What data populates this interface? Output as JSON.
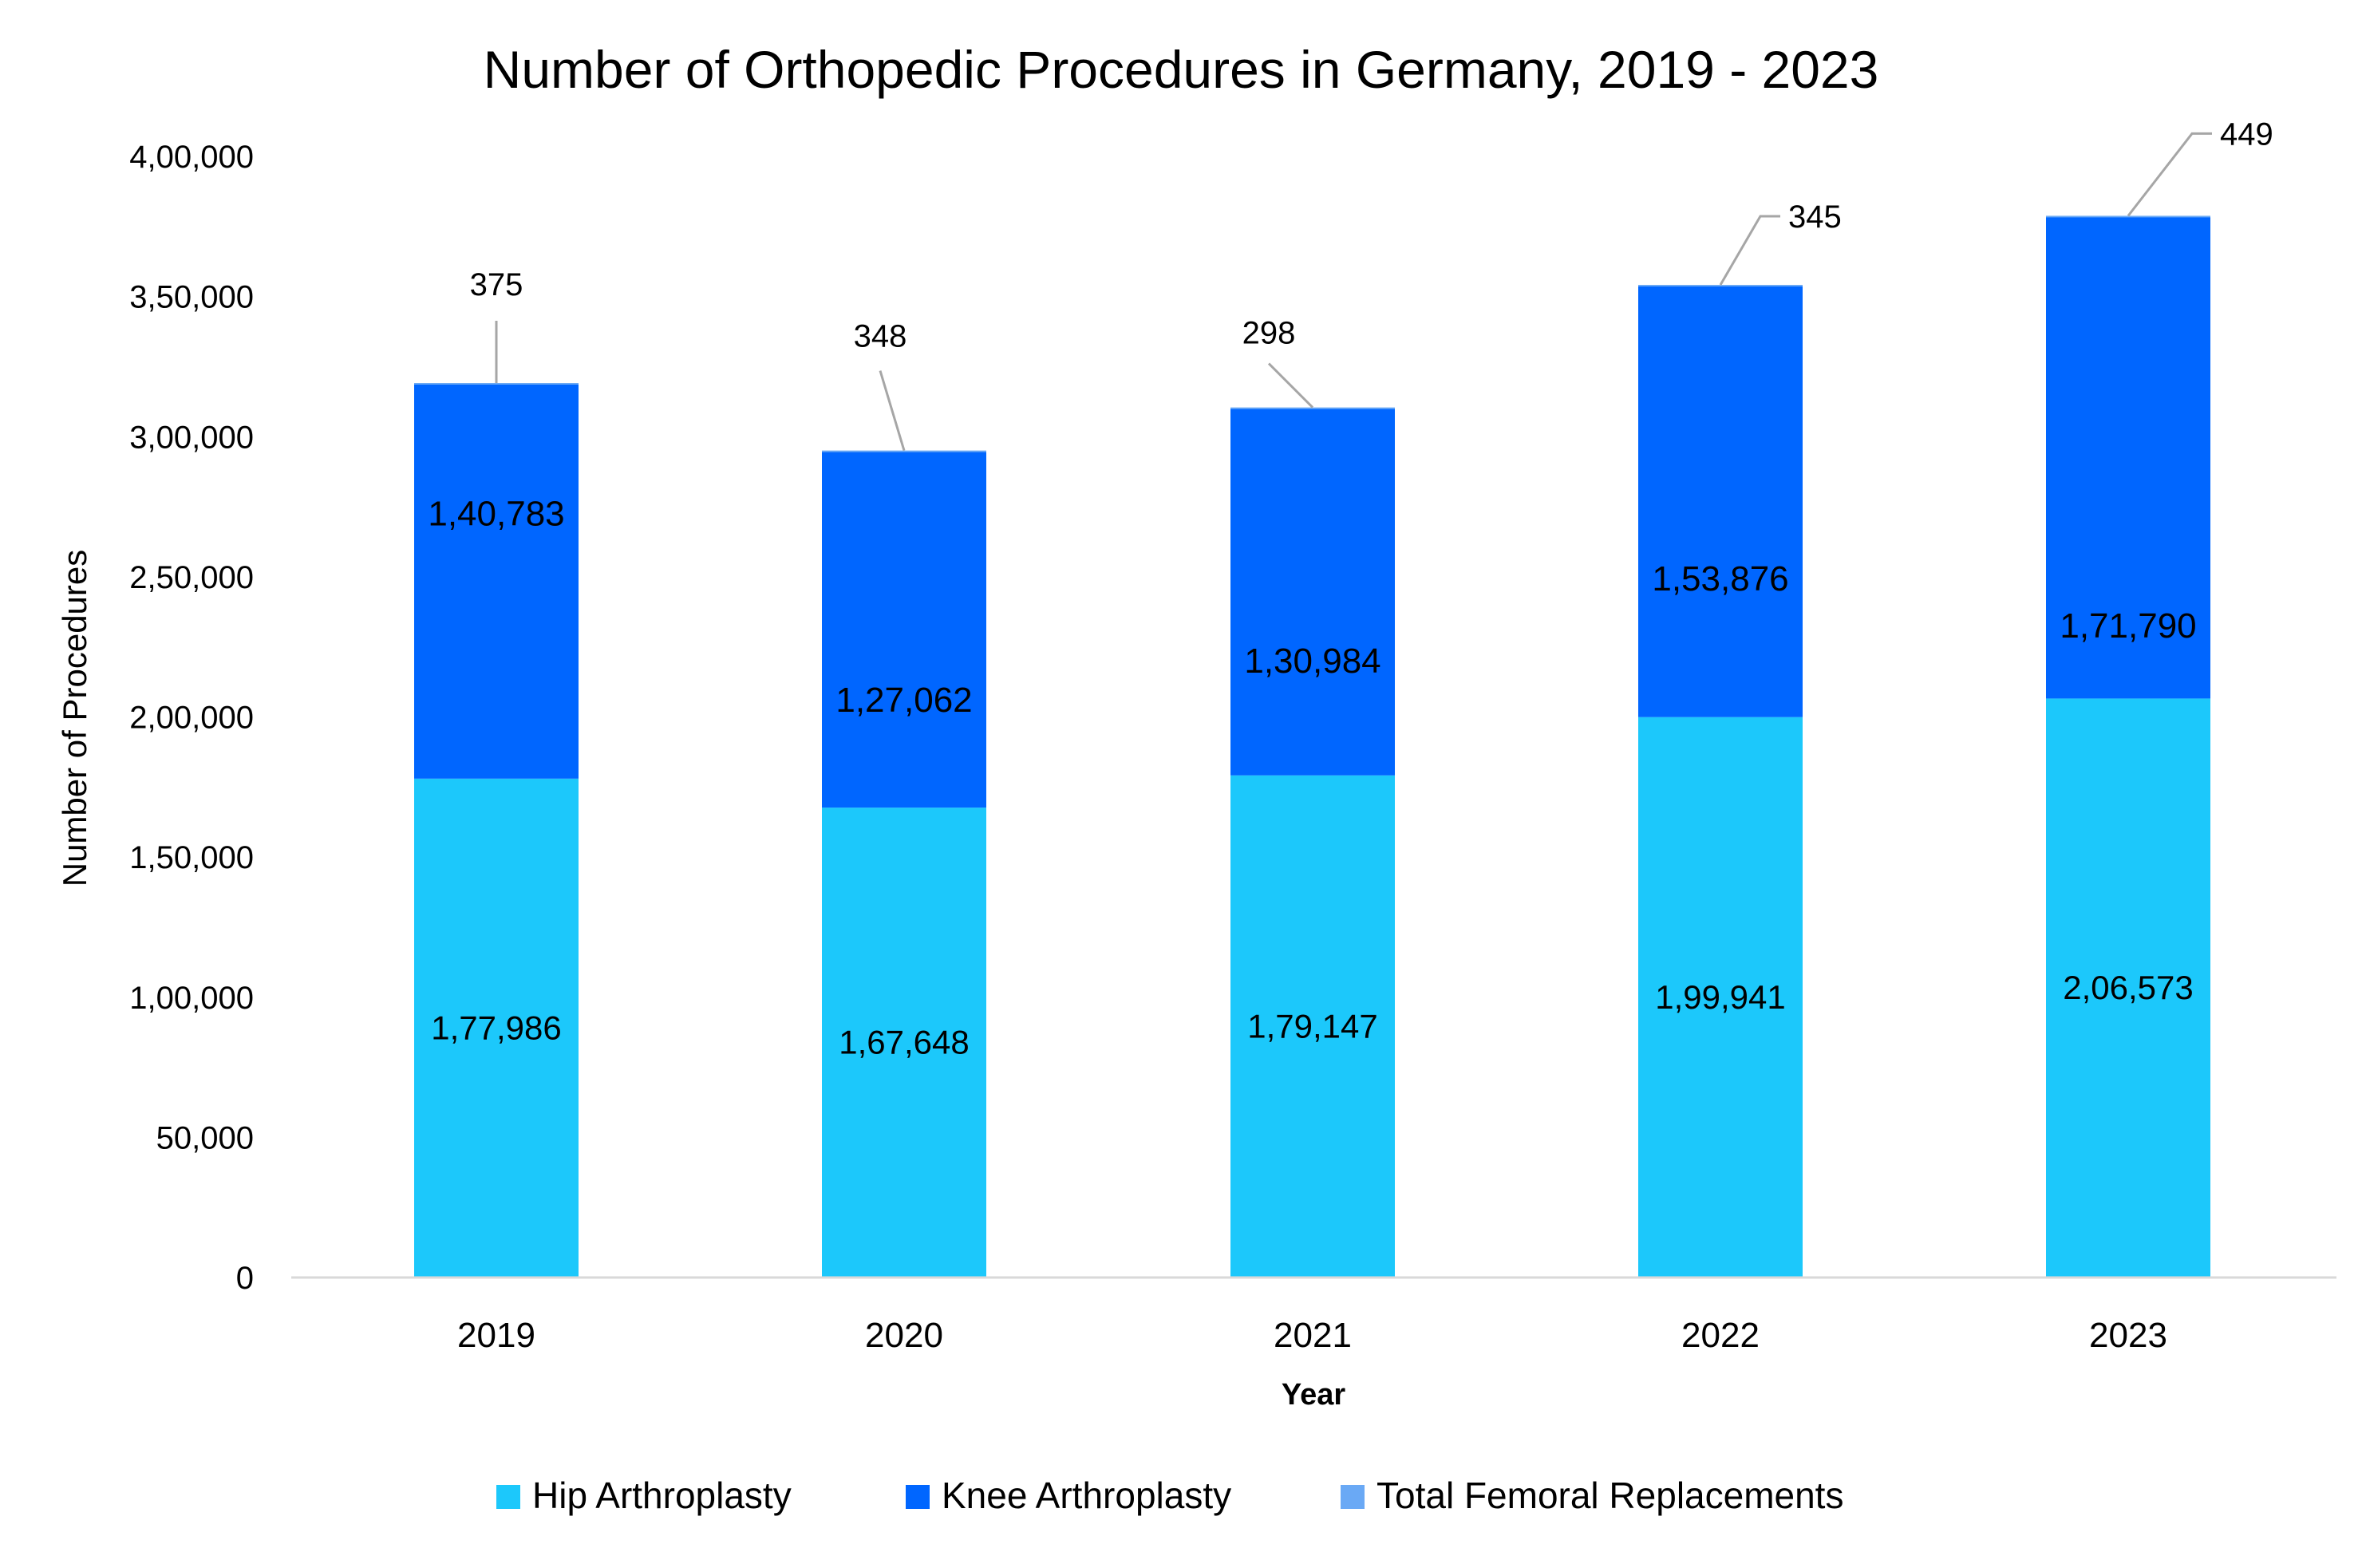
{
  "chart_data": {
    "type": "bar",
    "stacked": true,
    "title": "Number of Orthopedic Procedures in Germany, 2019 - 2023",
    "xlabel": "Year",
    "ylabel": "Number of Procedures",
    "categories": [
      "2019",
      "2020",
      "2021",
      "2022",
      "2023"
    ],
    "ylim": [
      0,
      400000
    ],
    "yticks": [
      "0",
      "50,000",
      "1,00,000",
      "1,50,000",
      "2,00,000",
      "2,50,000",
      "3,00,000",
      "3,50,000",
      "4,00,000"
    ],
    "series": [
      {
        "name": "Hip Arthroplasty",
        "color": "#1cc8fb",
        "values": [
          177986,
          167648,
          179147,
          199941,
          206573
        ],
        "labels": [
          "1,77,986",
          "1,67,648",
          "1,79,147",
          "1,99,941",
          "2,06,573"
        ]
      },
      {
        "name": "Knee Arthroplasty",
        "color": "#0066ff",
        "values": [
          140783,
          127062,
          130984,
          153876,
          171790
        ],
        "labels": [
          "1,40,783",
          "1,27,062",
          "1,30,984",
          "1,53,876",
          "1,71,790"
        ]
      },
      {
        "name": "Total Femoral Replacements",
        "color": "#6aa9f5",
        "values": [
          375,
          348,
          298,
          345,
          449
        ],
        "labels": [
          "375",
          "348",
          "298",
          "345",
          "449"
        ]
      }
    ],
    "legend_position": "bottom",
    "grid": false
  }
}
